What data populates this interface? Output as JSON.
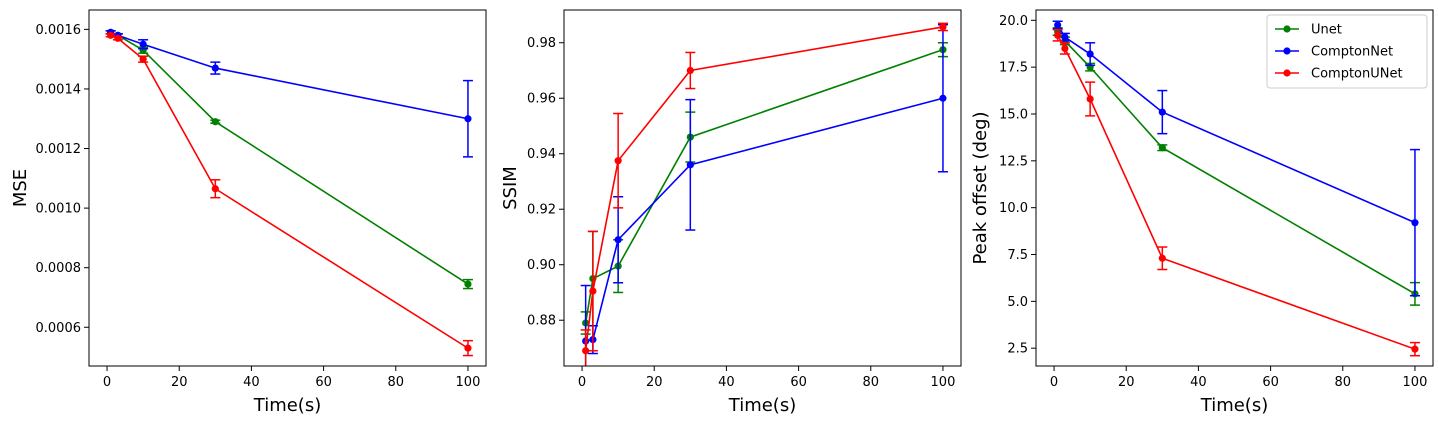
{
  "chart_data": [
    {
      "type": "line",
      "title": "",
      "xlabel": "Time(s)",
      "ylabel": "MSE",
      "xlim": [
        -5,
        105
      ],
      "ylim": [
        0.00047,
        0.001665
      ],
      "xticks": [
        0,
        20,
        40,
        60,
        80,
        100
      ],
      "xtick_labels": [
        "0",
        "20",
        "40",
        "60",
        "80",
        "100"
      ],
      "yticks": [
        0.0006,
        0.0008,
        0.001,
        0.0012,
        0.0014,
        0.0016
      ],
      "ytick_labels": [
        "0.0006",
        "0.0008",
        "0.0010",
        "0.0012",
        "0.0014",
        "0.0016"
      ],
      "x": [
        1,
        3,
        10,
        30,
        100
      ],
      "series": [
        {
          "name": "Unet",
          "color": "#008000",
          "values": [
            0.00159,
            0.00158,
            0.00153,
            0.00129,
            0.000745
          ],
          "errors": [
            5e-06,
            5e-06,
            1e-05,
            5e-06,
            1.5e-05
          ]
        },
        {
          "name": "ComptonNet",
          "color": "#0000ff",
          "values": [
            0.00159,
            0.00158,
            0.00155,
            0.00147,
            0.0013
          ],
          "errors": [
            5e-06,
            5e-06,
            1.5e-05,
            2e-05,
            0.000128
          ]
        },
        {
          "name": "ComptonUNet",
          "color": "#ff0000",
          "values": [
            0.00158,
            0.00157,
            0.0015,
            0.001065,
            0.00053
          ],
          "errors": [
            5e-06,
            5e-06,
            1e-05,
            3e-05,
            2.5e-05
          ]
        }
      ],
      "legend": false
    },
    {
      "type": "line",
      "title": "",
      "xlabel": "Time(s)",
      "ylabel": "SSIM",
      "xlim": [
        -5,
        105
      ],
      "ylim": [
        0.8635,
        0.9918
      ],
      "xticks": [
        0,
        20,
        40,
        60,
        80,
        100
      ],
      "xtick_labels": [
        "0",
        "20",
        "40",
        "60",
        "80",
        "100"
      ],
      "yticks": [
        0.88,
        0.9,
        0.92,
        0.94,
        0.96,
        0.98
      ],
      "ytick_labels": [
        "0.88",
        "0.90",
        "0.92",
        "0.94",
        "0.96",
        "0.98"
      ],
      "x": [
        1,
        3,
        10,
        30,
        100
      ],
      "series": [
        {
          "name": "Unet",
          "color": "#008000",
          "values": [
            0.879,
            0.895,
            0.8995,
            0.946,
            0.9775
          ],
          "errors": [
            0.004,
            0.017,
            0.0095,
            0.009,
            0.0025
          ]
        },
        {
          "name": "ComptonNet",
          "color": "#0000ff",
          "values": [
            0.8725,
            0.873,
            0.909,
            0.936,
            0.96
          ],
          "errors": [
            0.02,
            0.005,
            0.0155,
            0.0235,
            0.0265
          ]
        },
        {
          "name": "ComptonUNet",
          "color": "#ff0000",
          "values": [
            0.869,
            0.8905,
            0.9375,
            0.97,
            0.9857
          ],
          "errors": [
            0.0075,
            0.0215,
            0.017,
            0.0065,
            0.0013
          ]
        }
      ],
      "legend": false
    },
    {
      "type": "line",
      "title": "",
      "xlabel": "Time(s)",
      "ylabel": "Peak offset (deg)",
      "xlim": [
        -5,
        105
      ],
      "ylim": [
        1.55,
        20.55
      ],
      "xticks": [
        0,
        20,
        40,
        60,
        80,
        100
      ],
      "xtick_labels": [
        "0",
        "20",
        "40",
        "60",
        "80",
        "100"
      ],
      "yticks": [
        2.5,
        5.0,
        7.5,
        10.0,
        12.5,
        15.0,
        17.5,
        20.0
      ],
      "ytick_labels": [
        "2.5",
        "5.0",
        "7.5",
        "10.0",
        "12.5",
        "15.0",
        "17.5",
        "20.0"
      ],
      "x": [
        1,
        3,
        10,
        30,
        100
      ],
      "series": [
        {
          "name": "Unet",
          "color": "#008000",
          "values": [
            19.4,
            18.9,
            17.5,
            13.2,
            5.4
          ],
          "errors": [
            0.2,
            0.2,
            0.2,
            0.15,
            0.6
          ]
        },
        {
          "name": "ComptonNet",
          "color": "#0000ff",
          "values": [
            19.75,
            19.1,
            18.2,
            15.1,
            9.2
          ],
          "errors": [
            0.2,
            0.2,
            0.6,
            1.15,
            3.9
          ]
        },
        {
          "name": "ComptonUNet",
          "color": "#ff0000",
          "values": [
            19.2,
            18.5,
            15.8,
            7.3,
            2.45
          ],
          "errors": [
            0.3,
            0.3,
            0.9,
            0.6,
            0.35
          ]
        }
      ],
      "legend": true,
      "legend_location": "top-right"
    }
  ]
}
